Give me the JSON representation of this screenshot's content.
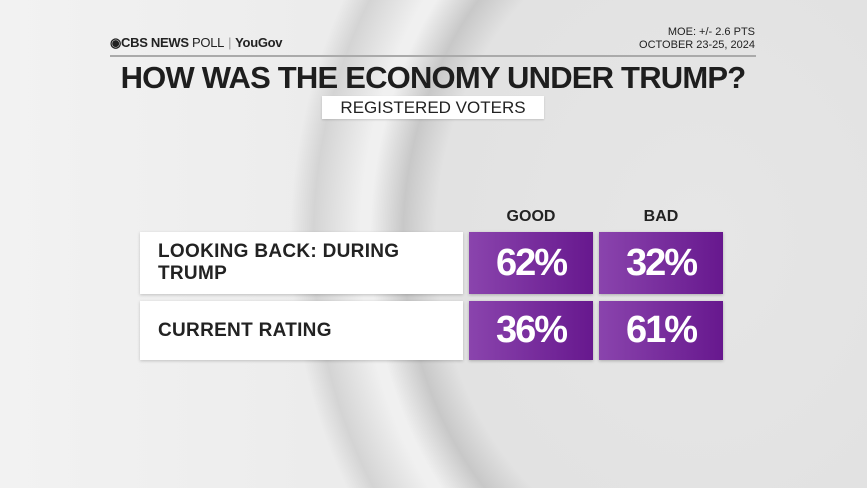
{
  "header": {
    "logo_cbs": "CBS NEWS",
    "logo_poll": "POLL",
    "logo_separator": "|",
    "logo_partner": "YouGov",
    "moe": "MOE: +/- 2.6 PTS",
    "dates": "OCTOBER 23-25, 2024",
    "title": "HOW WAS THE ECONOMY UNDER TRUMP?",
    "subtitle": "REGISTERED VOTERS"
  },
  "chart_data": {
    "type": "table",
    "title": "HOW WAS THE ECONOMY UNDER TRUMP?",
    "subtitle": "REGISTERED VOTERS",
    "columns": [
      "GOOD",
      "BAD"
    ],
    "rows": [
      {
        "label": "LOOKING BACK: DURING TRUMP",
        "values": [
          "62%",
          "32%"
        ]
      },
      {
        "label": "CURRENT RATING",
        "values": [
          "36%",
          "61%"
        ]
      }
    ],
    "cell_color": "#7a2fa0"
  }
}
